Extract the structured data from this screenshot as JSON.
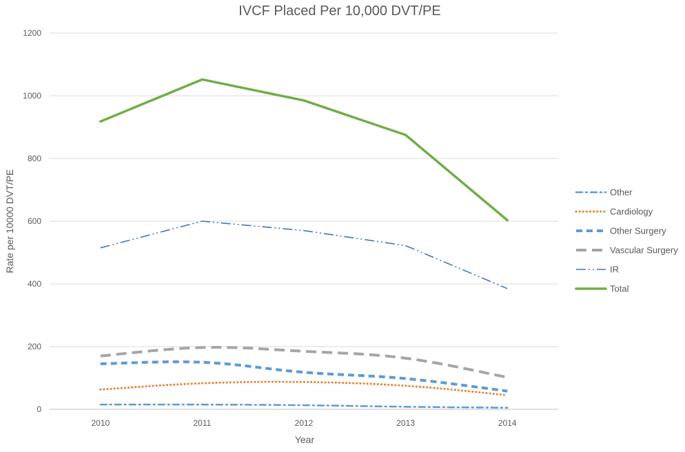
{
  "chart_data": {
    "type": "line",
    "title": "IVCF Placed Per 10,000 DVT/PE",
    "xlabel": "Year",
    "ylabel": "Rate per 10000 DVT/PE",
    "categories": [
      "2010",
      "2011",
      "2012",
      "2013",
      "2014"
    ],
    "ylim": [
      0,
      1200
    ],
    "yticks": [
      0,
      200,
      400,
      600,
      800,
      1000,
      1200
    ],
    "grid": true,
    "legend_position": "right",
    "series": [
      {
        "name": "Other",
        "values": [
          15,
          15,
          13,
          8,
          5
        ],
        "color": "#5b9bd5",
        "dash": "dashdot"
      },
      {
        "name": "Cardiology",
        "values": [
          63,
          83,
          87,
          75,
          45
        ],
        "color": "#ed7d31",
        "dash": "dot"
      },
      {
        "name": "Other Surgery",
        "values": [
          145,
          150,
          118,
          98,
          58
        ],
        "color": "#5b9bd5",
        "dash": "dash"
      },
      {
        "name": "Vascular Surgery",
        "values": [
          170,
          197,
          185,
          163,
          102
        ],
        "color": "#a5a5a5",
        "dash": "longdash"
      },
      {
        "name": "IR",
        "values": [
          515,
          600,
          570,
          522,
          385
        ],
        "color": "#4472c4",
        "dash": "longdashdotdot"
      },
      {
        "name": "Total",
        "values": [
          918,
          1052,
          985,
          875,
          603
        ],
        "color": "#70ad47",
        "dash": "solid"
      }
    ]
  }
}
